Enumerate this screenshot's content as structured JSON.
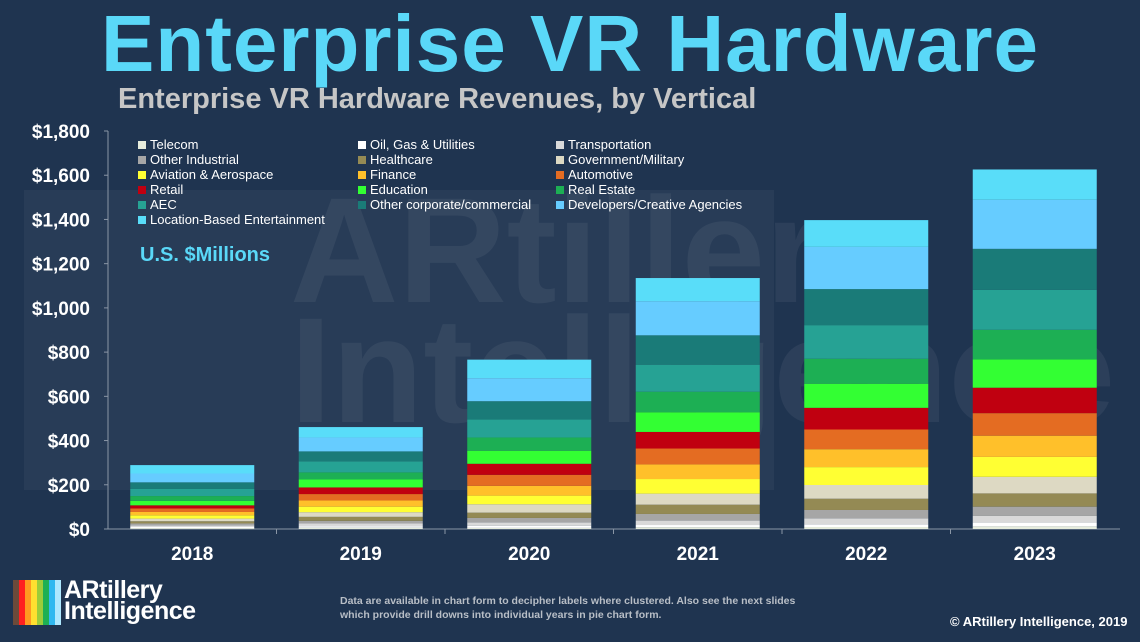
{
  "header": {
    "title": "Enterprise VR Hardware"
  },
  "units_label": "U.S. $Millions",
  "watermark": "ARtillery Intelligence",
  "footer": {
    "note": "Data are available in chart form to decipher labels where clustered. Also see the next slides which provide drill downs into individual years in pie chart form.",
    "copyright": "© ARtillery Intelligence, 2019",
    "logo_line1": "ARtillery",
    "logo_line2": "Intelligence"
  },
  "chart_data": {
    "type": "bar",
    "stacked": true,
    "title": "Enterprise VR Hardware Revenues, by Vertical",
    "xlabel": "",
    "ylabel": "",
    "ylim": [
      0,
      1800
    ],
    "yticks": [
      0,
      200,
      400,
      600,
      800,
      1000,
      1200,
      1400,
      1600,
      1800
    ],
    "ytick_labels": [
      "$0",
      "$200",
      "$400",
      "$600",
      "$800",
      "$1,000",
      "$1,200",
      "$1,400",
      "$1,600",
      "$1,800"
    ],
    "grid": false,
    "legend_position": "top-left",
    "categories": [
      "2018",
      "2019",
      "2020",
      "2021",
      "2022",
      "2023"
    ],
    "series": [
      {
        "name": "Telecom",
        "color": "#e6ecdc",
        "values": [
          4,
          6,
          5,
          8,
          9,
          12
        ]
      },
      {
        "name": "Oil, Gas & Utilities",
        "color": "#ffffff",
        "values": [
          5,
          7,
          10,
          10,
          12,
          17
        ]
      },
      {
        "name": "Transportation",
        "color": "#d9d9d9",
        "values": [
          8,
          12,
          15,
          20,
          27,
          30
        ]
      },
      {
        "name": "Other Industrial",
        "color": "#a6a6a6",
        "values": [
          8,
          12,
          20,
          30,
          38,
          42
        ]
      },
      {
        "name": "Healthcare",
        "color": "#948a54",
        "values": [
          10,
          18,
          24,
          42,
          51,
          60
        ]
      },
      {
        "name": "Government/Military",
        "color": "#ddd9c3",
        "values": [
          12,
          21,
          38,
          50,
          62,
          75
        ]
      },
      {
        "name": "Aviation & Aerospace",
        "color": "#ffff33",
        "values": [
          15,
          25,
          39,
          66,
          81,
          90
        ]
      },
      {
        "name": "Finance",
        "color": "#ffc02a",
        "values": [
          15,
          28,
          44,
          66,
          81,
          96
        ]
      },
      {
        "name": "Automotive",
        "color": "#e46c22",
        "values": [
          16,
          29,
          50,
          72,
          89,
          102
        ]
      },
      {
        "name": "Retail",
        "color": "#c00010",
        "values": [
          14,
          30,
          50,
          75,
          98,
          115
        ]
      },
      {
        "name": "Education",
        "color": "#33ff33",
        "values": [
          20,
          36,
          59,
          89,
          109,
          128
        ]
      },
      {
        "name": "Real Estate",
        "color": "#1daf54",
        "values": [
          22,
          32,
          60,
          93,
          113,
          134
        ]
      },
      {
        "name": "AEC",
        "color": "#26a294",
        "values": [
          32,
          50,
          81,
          122,
          152,
          181
        ]
      },
      {
        "name": "Other corporate/commercial",
        "color": "#1a7b78",
        "values": [
          30,
          45,
          83,
          133,
          163,
          185
        ]
      },
      {
        "name": "Developers/Creative Agencies",
        "color": "#66ccff",
        "values": [
          40,
          63,
          104,
          154,
          191,
          222
        ]
      },
      {
        "name": "Location-Based Entertainment",
        "color": "#59ddf9",
        "values": [
          38,
          47,
          84,
          105,
          121,
          137
        ]
      }
    ]
  }
}
